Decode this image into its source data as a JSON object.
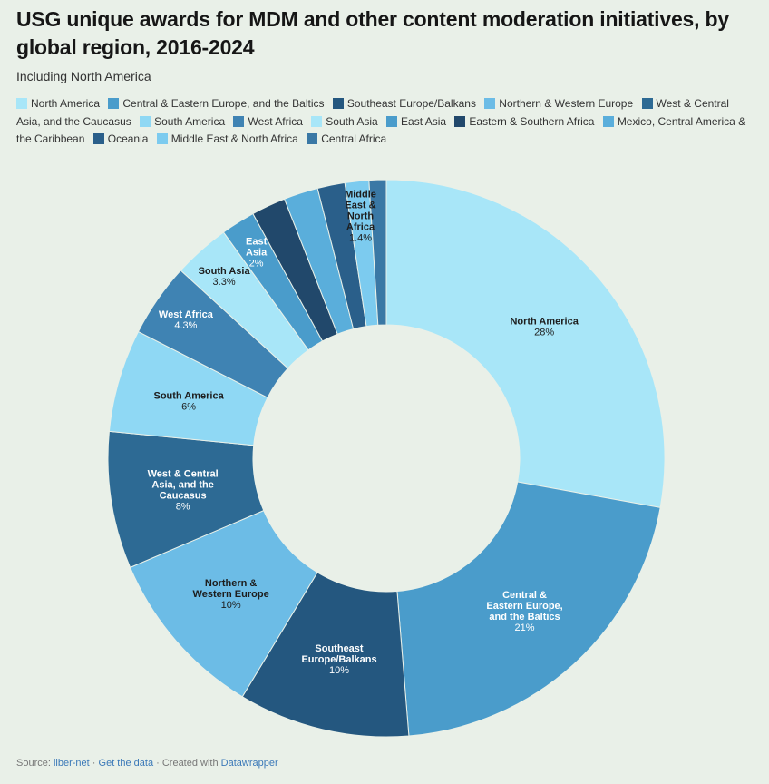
{
  "title": "USG unique awards for MDM and other content moderation initiatives, by global region, 2016-2024",
  "subtitle": "Including North America",
  "source": {
    "prefix": "Source:",
    "link1": "liber-net",
    "sep1": " · ",
    "link2": "Get the data",
    "sep2": " · Created with ",
    "link3": "Datawrapper"
  },
  "chart_data": {
    "type": "donut",
    "legend_placement": "top",
    "series": [
      {
        "name": "North America",
        "value": 28,
        "label": "28%",
        "color": "#a8e6f8",
        "text_color": "#1d1d1d"
      },
      {
        "name": "Central & Eastern Europe, and the Baltics",
        "value": 21,
        "label": "21%",
        "color": "#4a9ccb",
        "text_color": "#ffffff"
      },
      {
        "name": "Southeast Europe/Balkans",
        "value": 10,
        "label": "10%",
        "color": "#24577f",
        "text_color": "#ffffff"
      },
      {
        "name": "Northern & Western Europe",
        "value": 10,
        "label": "10%",
        "color": "#6cbce6",
        "text_color": "#1d1d1d"
      },
      {
        "name": "West & Central Asia, and the Caucasus",
        "value": 8,
        "label": "8%",
        "color": "#2d6a94",
        "text_color": "#ffffff"
      },
      {
        "name": "South America",
        "value": 6,
        "label": "6%",
        "color": "#8fd8f4",
        "text_color": "#1d1d1d"
      },
      {
        "name": "West Africa",
        "value": 4.3,
        "label": "4.3%",
        "color": "#3f83b3",
        "text_color": "#ffffff"
      },
      {
        "name": "South Asia",
        "value": 3.3,
        "label": "3.3%",
        "color": "#a8e6f8",
        "text_color": "#1d1d1d"
      },
      {
        "name": "East Asia",
        "value": 2,
        "label": "2%",
        "color": "#4a9ccb",
        "text_color": "#ffffff"
      },
      {
        "name": "Eastern & Southern Africa",
        "value": 2,
        "label": "",
        "color": "#21486b",
        "text_color": "#ffffff"
      },
      {
        "name": "Mexico, Central America & the Caribbean",
        "value": 2,
        "label": "",
        "color": "#5aaedb",
        "text_color": "#1d1d1d"
      },
      {
        "name": "Oceania",
        "value": 1.6,
        "label": "",
        "color": "#2a5f8a",
        "text_color": "#ffffff"
      },
      {
        "name": "Middle East & North Africa",
        "value": 1.4,
        "label": "1.4%",
        "color": "#7ccbef",
        "text_color": "#1d1d1d"
      },
      {
        "name": "Central Africa",
        "value": 1,
        "label": "",
        "color": "#3a78a5",
        "text_color": "#ffffff"
      }
    ],
    "slice_labels": [
      {
        "lines": [
          "North America"
        ],
        "value_label": "28%"
      },
      {
        "lines": [
          "Central &",
          "Eastern Europe,",
          "and the Baltics"
        ],
        "value_label": "21%"
      },
      {
        "lines": [
          "Southeast",
          "Europe/Balkans"
        ],
        "value_label": "10%"
      },
      {
        "lines": [
          "Northern &",
          "Western Europe"
        ],
        "value_label": "10%"
      },
      {
        "lines": [
          "West & Central",
          "Asia, and the",
          "Caucasus"
        ],
        "value_label": "8%"
      },
      {
        "lines": [
          "South America"
        ],
        "value_label": "6%"
      },
      {
        "lines": [
          "West Africa"
        ],
        "value_label": "4.3%"
      },
      {
        "lines": [
          "South Asia"
        ],
        "value_label": "3.3%"
      },
      {
        "lines": [
          "East",
          "Asia"
        ],
        "value_label": "2%"
      },
      null,
      null,
      null,
      {
        "lines": [
          "Middle",
          "East &",
          "North",
          "Africa"
        ],
        "value_label": "1.4%"
      },
      null
    ]
  }
}
